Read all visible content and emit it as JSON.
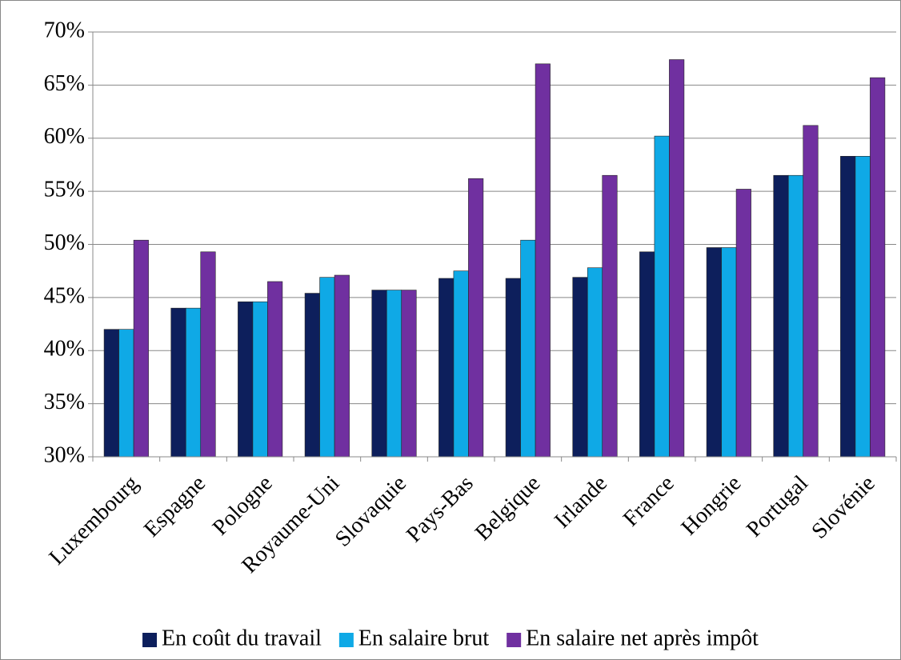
{
  "chart_data": {
    "type": "bar",
    "categories": [
      "Luxembourg",
      "Espagne",
      "Pologne",
      "Royaume-Uni",
      "Slovaquie",
      "Pays-Bas",
      "Belgique",
      "Irlande",
      "France",
      "Hongrie",
      "Portugal",
      "Slovénie"
    ],
    "series": [
      {
        "name": "En coût du travail",
        "color": "#0d1f5c",
        "values": [
          42.0,
          44.0,
          44.6,
          45.4,
          45.7,
          46.8,
          46.8,
          46.9,
          49.3,
          49.7,
          56.5,
          58.3
        ]
      },
      {
        "name": "En salaire brut",
        "color": "#0fa9e6",
        "values": [
          42.0,
          44.0,
          44.6,
          46.9,
          45.7,
          47.5,
          50.4,
          47.8,
          60.2,
          49.7,
          56.5,
          58.3
        ]
      },
      {
        "name": "En salaire net après impôt",
        "color": "#7030a0",
        "values": [
          50.4,
          49.3,
          46.5,
          47.1,
          45.7,
          56.2,
          67.0,
          56.5,
          67.4,
          55.2,
          61.2,
          65.7
        ]
      }
    ],
    "ylim": [
      30,
      70
    ],
    "yticks": [
      {
        "value": 30,
        "label": "30%"
      },
      {
        "value": 35,
        "label": "35%"
      },
      {
        "value": 40,
        "label": "40%"
      },
      {
        "value": 45,
        "label": "45%"
      },
      {
        "value": 50,
        "label": "50%"
      },
      {
        "value": 55,
        "label": "55%"
      },
      {
        "value": 60,
        "label": "60%"
      },
      {
        "value": 65,
        "label": "65%"
      },
      {
        "value": 70,
        "label": "70%"
      }
    ],
    "grid": true,
    "legend": "bottom"
  }
}
